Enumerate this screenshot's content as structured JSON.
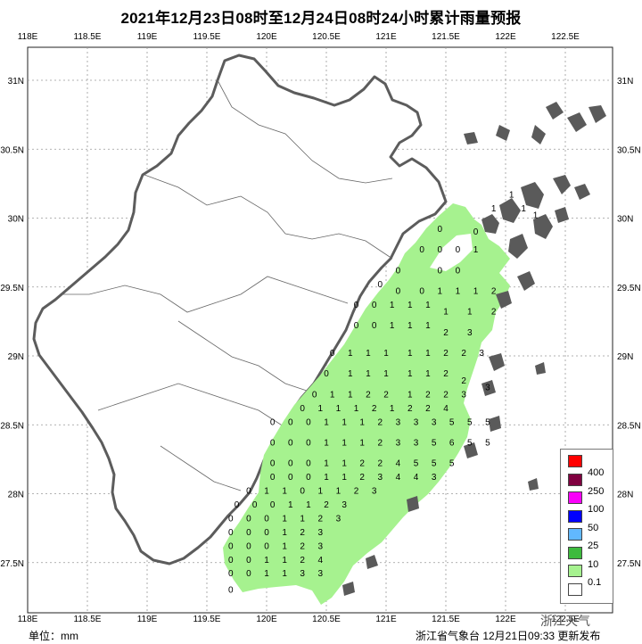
{
  "title": "2021年12月23日08时至12月24日08时24小时累计雨量预报",
  "unit_label": "单位：mm",
  "footer_credit": "浙江省气象台 12月21日09:33 更新发布",
  "watermark": "浙江天气",
  "map": {
    "lon_labels": [
      "118E",
      "118.5E",
      "119E",
      "119.5E",
      "120E",
      "120.5E",
      "121E",
      "121.5E",
      "122E",
      "122.5E"
    ],
    "lat_labels": [
      "31N",
      "30.5N",
      "30N",
      "29.5N",
      "29N",
      "28.5N",
      "28N",
      "27.5N"
    ],
    "grid": "dotted",
    "colors": {
      "land_outline": "#555555",
      "islands": "#5a5a5a",
      "rain_0_1": "#a6f28f",
      "rain_10": "#3dba3d",
      "rain_25": "#61b8ff",
      "rain_50": "#0000ff",
      "rain_100": "#fa00fa",
      "rain_250": "#800040",
      "rain_400": "#ff0000"
    },
    "value_labels": [
      {
        "lon": 121.45,
        "lat": 29.9,
        "value": "0"
      },
      {
        "lon": 121.75,
        "lat": 29.88,
        "value": "0"
      },
      {
        "lon": 121.9,
        "lat": 30.05,
        "value": "1"
      },
      {
        "lon": 122.05,
        "lat": 30.15,
        "value": "1"
      },
      {
        "lon": 122.15,
        "lat": 30.05,
        "value": "1"
      },
      {
        "lon": 122.25,
        "lat": 30.0,
        "value": "1"
      },
      {
        "lon": 121.3,
        "lat": 29.75,
        "value": "0"
      },
      {
        "lon": 121.45,
        "lat": 29.75,
        "value": "0"
      },
      {
        "lon": 121.6,
        "lat": 29.75,
        "value": "0"
      },
      {
        "lon": 121.75,
        "lat": 29.75,
        "value": "1"
      },
      {
        "lon": 121.6,
        "lat": 29.6,
        "value": "0"
      },
      {
        "lon": 121.45,
        "lat": 29.6,
        "value": "0"
      },
      {
        "lon": 121.1,
        "lat": 29.6,
        "value": "0"
      },
      {
        "lon": 120.95,
        "lat": 29.5,
        "value": "0"
      },
      {
        "lon": 121.1,
        "lat": 29.45,
        "value": "0"
      },
      {
        "lon": 121.3,
        "lat": 29.45,
        "value": "0"
      },
      {
        "lon": 121.45,
        "lat": 29.45,
        "value": "1"
      },
      {
        "lon": 121.6,
        "lat": 29.45,
        "value": "1"
      },
      {
        "lon": 121.75,
        "lat": 29.45,
        "value": "1"
      },
      {
        "lon": 121.9,
        "lat": 29.45,
        "value": "2"
      },
      {
        "lon": 120.75,
        "lat": 29.35,
        "value": "0"
      },
      {
        "lon": 120.9,
        "lat": 29.35,
        "value": "0"
      },
      {
        "lon": 121.05,
        "lat": 29.35,
        "value": "1"
      },
      {
        "lon": 121.2,
        "lat": 29.35,
        "value": "1"
      },
      {
        "lon": 121.35,
        "lat": 29.35,
        "value": "1"
      },
      {
        "lon": 121.5,
        "lat": 29.3,
        "value": "1"
      },
      {
        "lon": 121.7,
        "lat": 29.3,
        "value": "1"
      },
      {
        "lon": 121.9,
        "lat": 29.3,
        "value": "2"
      },
      {
        "lon": 120.75,
        "lat": 29.2,
        "value": "0"
      },
      {
        "lon": 120.9,
        "lat": 29.2,
        "value": "0"
      },
      {
        "lon": 121.05,
        "lat": 29.2,
        "value": "1"
      },
      {
        "lon": 121.2,
        "lat": 29.2,
        "value": "1"
      },
      {
        "lon": 121.35,
        "lat": 29.2,
        "value": "1"
      },
      {
        "lon": 121.5,
        "lat": 29.15,
        "value": "2"
      },
      {
        "lon": 121.7,
        "lat": 29.15,
        "value": "3"
      },
      {
        "lon": 120.55,
        "lat": 29.0,
        "value": "0"
      },
      {
        "lon": 120.7,
        "lat": 29.0,
        "value": "1"
      },
      {
        "lon": 120.85,
        "lat": 29.0,
        "value": "1"
      },
      {
        "lon": 121.0,
        "lat": 29.0,
        "value": "1"
      },
      {
        "lon": 121.2,
        "lat": 29.0,
        "value": "1"
      },
      {
        "lon": 121.35,
        "lat": 29.0,
        "value": "1"
      },
      {
        "lon": 121.5,
        "lat": 29.0,
        "value": "2"
      },
      {
        "lon": 121.65,
        "lat": 29.0,
        "value": "2"
      },
      {
        "lon": 121.8,
        "lat": 29.0,
        "value": "3"
      },
      {
        "lon": 120.5,
        "lat": 28.85,
        "value": "0"
      },
      {
        "lon": 120.7,
        "lat": 28.85,
        "value": "1"
      },
      {
        "lon": 120.85,
        "lat": 28.85,
        "value": "1"
      },
      {
        "lon": 121.0,
        "lat": 28.85,
        "value": "1"
      },
      {
        "lon": 121.2,
        "lat": 28.85,
        "value": "1"
      },
      {
        "lon": 121.35,
        "lat": 28.85,
        "value": "1"
      },
      {
        "lon": 121.5,
        "lat": 28.85,
        "value": "2"
      },
      {
        "lon": 121.65,
        "lat": 28.8,
        "value": "2"
      },
      {
        "lon": 121.85,
        "lat": 28.75,
        "value": "3"
      },
      {
        "lon": 120.4,
        "lat": 28.7,
        "value": "0"
      },
      {
        "lon": 120.55,
        "lat": 28.7,
        "value": "1"
      },
      {
        "lon": 120.7,
        "lat": 28.7,
        "value": "1"
      },
      {
        "lon": 120.85,
        "lat": 28.7,
        "value": "2"
      },
      {
        "lon": 121.0,
        "lat": 28.7,
        "value": "2"
      },
      {
        "lon": 121.2,
        "lat": 28.7,
        "value": "1"
      },
      {
        "lon": 121.35,
        "lat": 28.7,
        "value": "2"
      },
      {
        "lon": 121.5,
        "lat": 28.7,
        "value": "2"
      },
      {
        "lon": 121.65,
        "lat": 28.7,
        "value": "3"
      },
      {
        "lon": 120.3,
        "lat": 28.6,
        "value": "0"
      },
      {
        "lon": 120.45,
        "lat": 28.6,
        "value": "1"
      },
      {
        "lon": 120.6,
        "lat": 28.6,
        "value": "1"
      },
      {
        "lon": 120.75,
        "lat": 28.6,
        "value": "1"
      },
      {
        "lon": 120.9,
        "lat": 28.6,
        "value": "2"
      },
      {
        "lon": 121.05,
        "lat": 28.6,
        "value": "1"
      },
      {
        "lon": 121.2,
        "lat": 28.6,
        "value": "2"
      },
      {
        "lon": 121.35,
        "lat": 28.6,
        "value": "2"
      },
      {
        "lon": 121.5,
        "lat": 28.6,
        "value": "4"
      },
      {
        "lon": 120.05,
        "lat": 28.5,
        "value": "0"
      },
      {
        "lon": 120.2,
        "lat": 28.5,
        "value": "0"
      },
      {
        "lon": 120.35,
        "lat": 28.5,
        "value": "0"
      },
      {
        "lon": 120.5,
        "lat": 28.5,
        "value": "1"
      },
      {
        "lon": 120.65,
        "lat": 28.5,
        "value": "1"
      },
      {
        "lon": 120.8,
        "lat": 28.5,
        "value": "1"
      },
      {
        "lon": 120.95,
        "lat": 28.5,
        "value": "2"
      },
      {
        "lon": 121.1,
        "lat": 28.5,
        "value": "3"
      },
      {
        "lon": 121.25,
        "lat": 28.5,
        "value": "3"
      },
      {
        "lon": 121.4,
        "lat": 28.5,
        "value": "3"
      },
      {
        "lon": 121.55,
        "lat": 28.5,
        "value": "5"
      },
      {
        "lon": 121.7,
        "lat": 28.5,
        "value": "5"
      },
      {
        "lon": 121.85,
        "lat": 28.5,
        "value": "5"
      },
      {
        "lon": 120.05,
        "lat": 28.35,
        "value": "0"
      },
      {
        "lon": 120.2,
        "lat": 28.35,
        "value": "0"
      },
      {
        "lon": 120.35,
        "lat": 28.35,
        "value": "0"
      },
      {
        "lon": 120.5,
        "lat": 28.35,
        "value": "1"
      },
      {
        "lon": 120.65,
        "lat": 28.35,
        "value": "1"
      },
      {
        "lon": 120.8,
        "lat": 28.35,
        "value": "1"
      },
      {
        "lon": 120.95,
        "lat": 28.35,
        "value": "2"
      },
      {
        "lon": 121.1,
        "lat": 28.35,
        "value": "3"
      },
      {
        "lon": 121.25,
        "lat": 28.35,
        "value": "3"
      },
      {
        "lon": 121.4,
        "lat": 28.35,
        "value": "5"
      },
      {
        "lon": 121.55,
        "lat": 28.35,
        "value": "6"
      },
      {
        "lon": 121.7,
        "lat": 28.35,
        "value": "5"
      },
      {
        "lon": 121.85,
        "lat": 28.35,
        "value": "5"
      },
      {
        "lon": 120.05,
        "lat": 28.2,
        "value": "0"
      },
      {
        "lon": 120.2,
        "lat": 28.2,
        "value": "0"
      },
      {
        "lon": 120.35,
        "lat": 28.2,
        "value": "0"
      },
      {
        "lon": 120.5,
        "lat": 28.2,
        "value": "1"
      },
      {
        "lon": 120.65,
        "lat": 28.2,
        "value": "1"
      },
      {
        "lon": 120.8,
        "lat": 28.2,
        "value": "2"
      },
      {
        "lon": 120.95,
        "lat": 28.2,
        "value": "2"
      },
      {
        "lon": 121.1,
        "lat": 28.2,
        "value": "4"
      },
      {
        "lon": 121.25,
        "lat": 28.2,
        "value": "5"
      },
      {
        "lon": 121.4,
        "lat": 28.2,
        "value": "5"
      },
      {
        "lon": 121.55,
        "lat": 28.2,
        "value": "5"
      },
      {
        "lon": 120.05,
        "lat": 28.1,
        "value": "0"
      },
      {
        "lon": 120.2,
        "lat": 28.1,
        "value": "0"
      },
      {
        "lon": 120.35,
        "lat": 28.1,
        "value": "0"
      },
      {
        "lon": 120.5,
        "lat": 28.1,
        "value": "1"
      },
      {
        "lon": 120.65,
        "lat": 28.1,
        "value": "1"
      },
      {
        "lon": 120.8,
        "lat": 28.1,
        "value": "2"
      },
      {
        "lon": 120.95,
        "lat": 28.1,
        "value": "3"
      },
      {
        "lon": 121.1,
        "lat": 28.1,
        "value": "4"
      },
      {
        "lon": 121.25,
        "lat": 28.1,
        "value": "4"
      },
      {
        "lon": 121.4,
        "lat": 28.1,
        "value": "3"
      },
      {
        "lon": 119.85,
        "lat": 28.0,
        "value": "0"
      },
      {
        "lon": 120.0,
        "lat": 28.0,
        "value": "1"
      },
      {
        "lon": 120.15,
        "lat": 28.0,
        "value": "1"
      },
      {
        "lon": 120.3,
        "lat": 28.0,
        "value": "0"
      },
      {
        "lon": 120.45,
        "lat": 28.0,
        "value": "1"
      },
      {
        "lon": 120.6,
        "lat": 28.0,
        "value": "1"
      },
      {
        "lon": 120.75,
        "lat": 28.0,
        "value": "2"
      },
      {
        "lon": 120.9,
        "lat": 28.0,
        "value": "3"
      },
      {
        "lon": 119.75,
        "lat": 27.9,
        "value": "0"
      },
      {
        "lon": 119.9,
        "lat": 27.9,
        "value": "0"
      },
      {
        "lon": 120.05,
        "lat": 27.9,
        "value": "0"
      },
      {
        "lon": 120.2,
        "lat": 27.9,
        "value": "1"
      },
      {
        "lon": 120.35,
        "lat": 27.9,
        "value": "1"
      },
      {
        "lon": 120.5,
        "lat": 27.9,
        "value": "2"
      },
      {
        "lon": 120.65,
        "lat": 27.9,
        "value": "3"
      },
      {
        "lon": 119.7,
        "lat": 27.8,
        "value": "0"
      },
      {
        "lon": 119.85,
        "lat": 27.8,
        "value": "0"
      },
      {
        "lon": 120.0,
        "lat": 27.8,
        "value": "0"
      },
      {
        "lon": 120.15,
        "lat": 27.8,
        "value": "1"
      },
      {
        "lon": 120.3,
        "lat": 27.8,
        "value": "1"
      },
      {
        "lon": 120.45,
        "lat": 27.8,
        "value": "2"
      },
      {
        "lon": 120.6,
        "lat": 27.8,
        "value": "3"
      },
      {
        "lon": 119.7,
        "lat": 27.7,
        "value": "0"
      },
      {
        "lon": 119.85,
        "lat": 27.7,
        "value": "0"
      },
      {
        "lon": 120.0,
        "lat": 27.7,
        "value": "0"
      },
      {
        "lon": 120.15,
        "lat": 27.7,
        "value": "1"
      },
      {
        "lon": 120.3,
        "lat": 27.7,
        "value": "2"
      },
      {
        "lon": 120.45,
        "lat": 27.7,
        "value": "3"
      },
      {
        "lon": 119.7,
        "lat": 27.6,
        "value": "0"
      },
      {
        "lon": 119.85,
        "lat": 27.6,
        "value": "0"
      },
      {
        "lon": 120.0,
        "lat": 27.6,
        "value": "0"
      },
      {
        "lon": 120.15,
        "lat": 27.6,
        "value": "1"
      },
      {
        "lon": 120.3,
        "lat": 27.6,
        "value": "2"
      },
      {
        "lon": 120.45,
        "lat": 27.6,
        "value": "3"
      },
      {
        "lon": 119.7,
        "lat": 27.5,
        "value": "0"
      },
      {
        "lon": 119.85,
        "lat": 27.5,
        "value": "0"
      },
      {
        "lon": 120.0,
        "lat": 27.5,
        "value": "1"
      },
      {
        "lon": 120.15,
        "lat": 27.5,
        "value": "1"
      },
      {
        "lon": 120.3,
        "lat": 27.5,
        "value": "2"
      },
      {
        "lon": 120.45,
        "lat": 27.5,
        "value": "4"
      },
      {
        "lon": 119.7,
        "lat": 27.4,
        "value": "0"
      },
      {
        "lon": 119.85,
        "lat": 27.4,
        "value": "0"
      },
      {
        "lon": 120.0,
        "lat": 27.4,
        "value": "1"
      },
      {
        "lon": 120.15,
        "lat": 27.4,
        "value": "1"
      },
      {
        "lon": 120.3,
        "lat": 27.4,
        "value": "3"
      },
      {
        "lon": 120.45,
        "lat": 27.4,
        "value": "3"
      },
      {
        "lon": 119.7,
        "lat": 27.28,
        "value": "0"
      }
    ]
  },
  "legend": {
    "items": [
      {
        "label": "400",
        "color": "#ff0000"
      },
      {
        "label": "250",
        "color": "#800040"
      },
      {
        "label": "100",
        "color": "#fa00fa"
      },
      {
        "label": "50",
        "color": "#0000ff"
      },
      {
        "label": "25",
        "color": "#61b8ff"
      },
      {
        "label": "10",
        "color": "#3dba3d"
      },
      {
        "label": "0.1",
        "color": "#a6f28f"
      },
      {
        "label": "",
        "color": "#ffffff"
      }
    ]
  }
}
